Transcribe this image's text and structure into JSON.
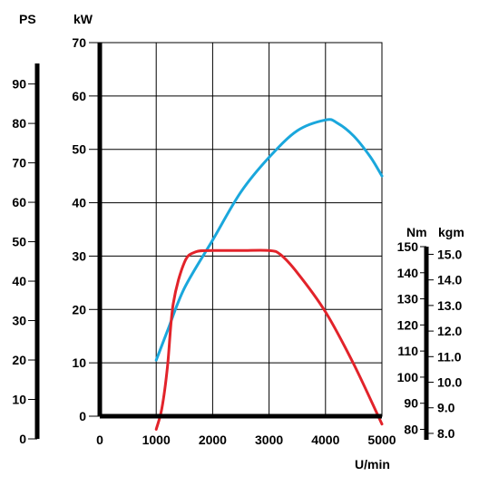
{
  "chart_data": {
    "type": "line",
    "title": "",
    "xlabel": "U/min",
    "xlim": [
      0,
      5000
    ],
    "x_ticks": [
      "0",
      "1000",
      "2000",
      "3000",
      "4000",
      "5000"
    ],
    "axes": {
      "kw": {
        "unit": "kW",
        "ylim": [
          0,
          70
        ],
        "ticks": [
          "0",
          "10",
          "20",
          "30",
          "40",
          "50",
          "60",
          "70"
        ]
      },
      "ps": {
        "unit": "PS",
        "ylim": [
          0,
          95.2
        ],
        "ticks": [
          "0",
          "10",
          "20",
          "30",
          "40",
          "50",
          "60",
          "70",
          "80",
          "90"
        ]
      },
      "nm": {
        "unit": "Nm",
        "ylim": [
          76,
          150
        ],
        "ticks": [
          "80",
          "90",
          "100",
          "110",
          "120",
          "130",
          "140",
          "150"
        ]
      },
      "kgm": {
        "unit": "kgm",
        "ylim": [
          7.75,
          15.3
        ],
        "ticks": [
          "8.0",
          "9.0",
          "10.0",
          "11.0",
          "12.0",
          "13.0",
          "14.0",
          "15.0"
        ]
      }
    },
    "grid": true,
    "series": [
      {
        "name": "",
        "axis": "kw",
        "color": "#1aa7dc",
        "x": [
          1000,
          1200,
          1500,
          2000,
          2500,
          3000,
          3500,
          4000,
          4200,
          4500,
          4800,
          5000
        ],
        "y": [
          10.5,
          16,
          24,
          33,
          42,
          48.5,
          53.5,
          55.5,
          55,
          52.5,
          48.5,
          45
        ]
      },
      {
        "name": "",
        "axis": "nm",
        "color": "#e2232a",
        "x": [
          1000,
          1100,
          1200,
          1300,
          1500,
          1700,
          2000,
          2500,
          3000,
          3200,
          3500,
          4000,
          4500,
          5000
        ],
        "y": [
          80,
          88,
          104,
          128,
          144,
          148,
          148.5,
          148.5,
          148.5,
          147,
          140,
          125,
          105,
          82
        ]
      }
    ]
  }
}
